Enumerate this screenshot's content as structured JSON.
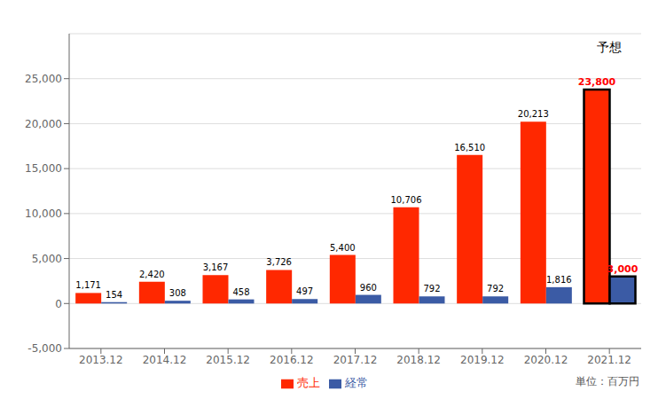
{
  "chart_data": {
    "type": "bar",
    "categories": [
      "2013.12",
      "2014.12",
      "2015.12",
      "2016.12",
      "2017.12",
      "2018.12",
      "2019.12",
      "2020.12",
      "2021.12"
    ],
    "series": [
      {
        "name": "売上",
        "color": "#FF2800",
        "values": [
          1171,
          2420,
          3167,
          3726,
          5400,
          10706,
          16510,
          20213,
          23800
        ],
        "value_labels": [
          "1,171",
          "2,420",
          "3,167",
          "3,726",
          "5,400",
          "10,706",
          "16,510",
          "20,213",
          "23,800"
        ]
      },
      {
        "name": "経常",
        "color": "#3B5BA5",
        "values": [
          154,
          308,
          458,
          497,
          960,
          792,
          792,
          1816,
          3000
        ],
        "value_labels": [
          "154",
          "308",
          "458",
          "497",
          "960",
          "792",
          "792",
          "1,816",
          "3,000"
        ]
      }
    ],
    "ylim": [
      -5000,
      30000
    ],
    "yticks": [
      {
        "value": -5000,
        "label": "-5,000"
      },
      0,
      {
        "value": 5000,
        "label": "5,000"
      },
      {
        "value": 10000,
        "label": "10,000"
      },
      {
        "value": 15000,
        "label": "15,000"
      },
      {
        "value": 20000,
        "label": "20,000"
      },
      {
        "value": 25000,
        "label": "25,000"
      }
    ],
    "grid": true,
    "legend": "bottom",
    "data_labels": true,
    "ylabel": "単位：百万円",
    "annotations": [
      {
        "text": "予想",
        "x": "2021.12",
        "y": 27500
      }
    ]
  }
}
